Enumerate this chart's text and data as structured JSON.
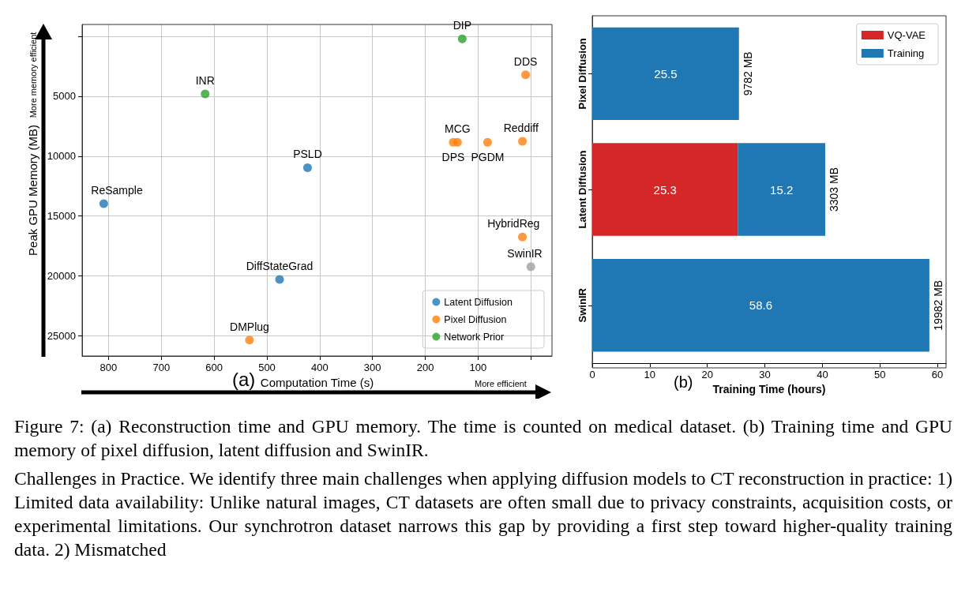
{
  "chart_data": [
    {
      "type": "scatter",
      "xlabel": "Computation Time (s)",
      "ylabel": "Peak GPU Memory (MB)",
      "xlim": [
        850,
        -40
      ],
      "xticks": [
        800,
        700,
        600,
        500,
        400,
        300,
        200,
        100,
        {
          "value": 0,
          "label": null
        }
      ],
      "ylim": [
        26700,
        -1000
      ],
      "yticks": [
        {
          "value": 0,
          "label": null
        },
        5000,
        10000,
        15000,
        20000,
        25000
      ],
      "grid": true,
      "legend": "bottom right",
      "marker": "circle",
      "series": [
        {
          "name": "Latent Diffusion",
          "color": "#1f77b4",
          "x": [
            423,
            809,
            476
          ],
          "values": [
            10970,
            13970,
            20300
          ]
        },
        {
          "name": "Pixel Diffusion",
          "color": "#ff7f0e",
          "x": [
            10,
            147,
            139,
            82,
            16,
            16,
            533
          ],
          "values": [
            3200,
            8850,
            8850,
            8850,
            8760,
            16760,
            25360
          ]
        },
        {
          "name": "Network Prior",
          "color": "#2ca02c",
          "x": [
            617,
            130
          ],
          "values": [
            4800,
            200
          ]
        },
        {
          "color": "#a0a0a0",
          "x": [
            0
          ],
          "values": [
            19240
          ]
        }
      ],
      "annotations": [
        {
          "text": "PSLD",
          "x": 423,
          "y": 10970
        },
        {
          "text": "ReSample",
          "x": 809,
          "y": 13970
        },
        {
          "text": "DiffStateGrad",
          "x": 476,
          "y": 20300
        },
        {
          "text": "DDS",
          "x": 10,
          "y": 3200
        },
        {
          "text": "MCG",
          "x": 139,
          "y": 8850
        },
        {
          "text": "PGDM",
          "x": 82,
          "y": 8850
        },
        {
          "text": "DPS",
          "x": 147,
          "y": 8850
        },
        {
          "text": "Reddiff",
          "x": 16,
          "y": 8760
        },
        {
          "text": "HybridReg",
          "x": 16,
          "y": 16760
        },
        {
          "text": "DMPlug",
          "x": 533,
          "y": 25360
        },
        {
          "text": "INR",
          "x": 617,
          "y": 4800
        },
        {
          "text": "DIP",
          "x": 130,
          "y": 200
        },
        {
          "text": "SwinIR",
          "x": 0,
          "y": 19240
        },
        "(a)",
        "More memory efficient",
        "More efficient"
      ]
    },
    {
      "type": "bar",
      "orientation": "horizontal",
      "stacked": true,
      "data_labels": true,
      "legend": "top right",
      "categories": [
        "Pixel Diffusion",
        "Latent Diffusion",
        "SwinIR"
      ],
      "xlabel": "Training Time (hours)",
      "xlim": [
        0,
        61.5
      ],
      "xticks": [
        0,
        10,
        20,
        30,
        40,
        50,
        60
      ],
      "series": [
        {
          "name": "VQ-VAE",
          "color": "#d62728",
          "values": [
            null,
            25.3,
            null
          ]
        },
        {
          "name": "Training",
          "color": "#1f77b4",
          "values": [
            25.5,
            15.2,
            58.6
          ]
        }
      ],
      "annotations": [
        {
          "text": "9782 MB",
          "x": 25.5,
          "y": "Pixel Diffusion"
        },
        {
          "text": "3303 MB",
          "x": 40.5,
          "y": "Latent Diffusion"
        },
        {
          "text": "19982 MB",
          "x": 58.6,
          "y": "SwinIR"
        },
        "(b)"
      ]
    },
    {
      "type": "other",
      "annotations": [
        "Figure 7: (a) Reconstruction time and GPU memory. The time is counted on medical dataset. (b) Training time and GPU memory of pixel diffusion, latent diffusion and SwinIR.",
        "Challenges in Practice. We identify three main challenges when applying diffusion models to CT reconstruction in practice: 1) Limited data availability: Unlike natural images, CT datasets are often small due to privacy constraints, acquisition costs, or experimental limitations. Our synchrotron dataset narrows this gap by providing a first step toward higher-quality training data. 2) Mismatched"
      ]
    }
  ]
}
